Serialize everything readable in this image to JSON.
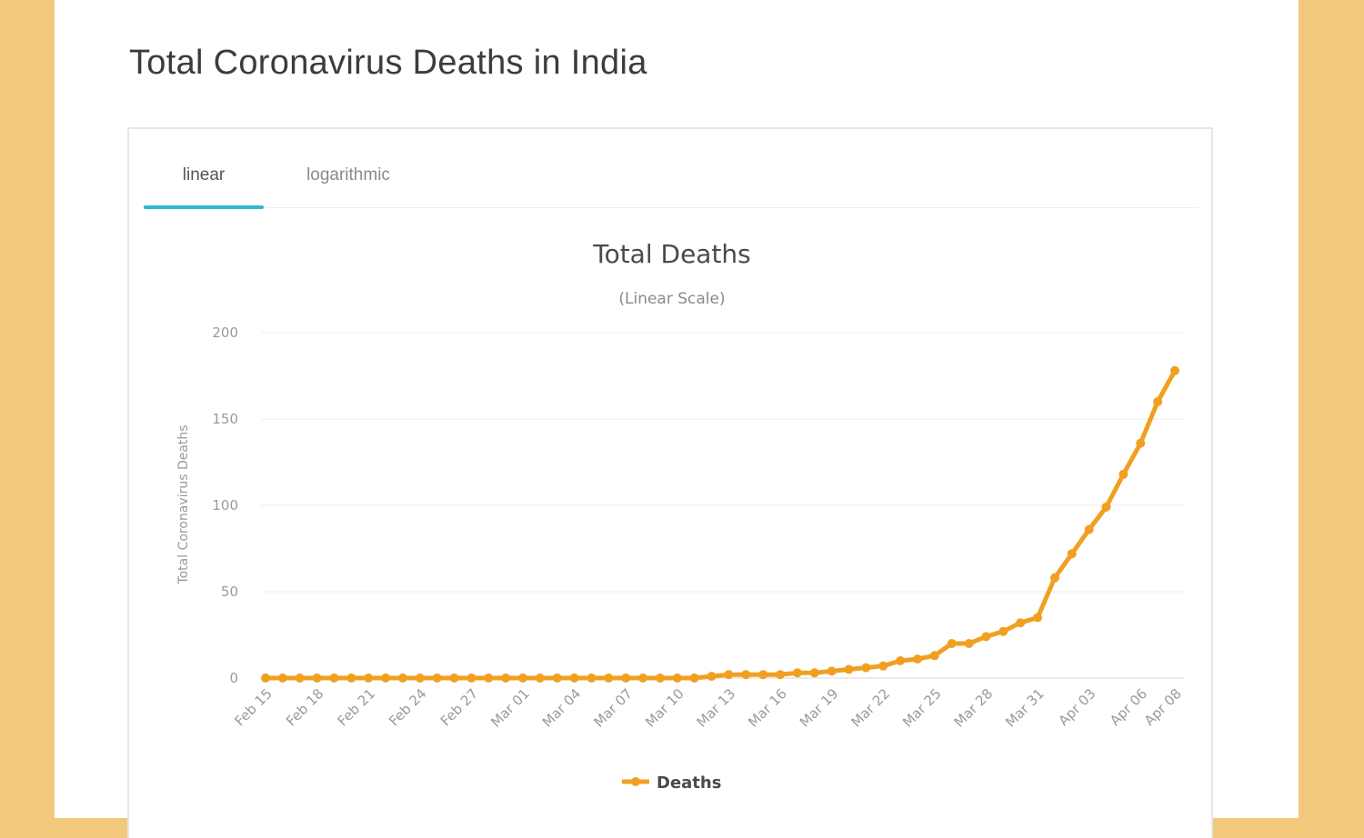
{
  "page": {
    "title": "Total Coronavirus Deaths in India"
  },
  "tabs": [
    {
      "label": "linear",
      "active": true
    },
    {
      "label": "logarithmic",
      "active": false
    }
  ],
  "colors": {
    "series": "#f0a020",
    "tab_underline": "#2fb7d0",
    "background": "#f2c97c"
  },
  "chart_data": {
    "type": "line",
    "title": "Total Deaths",
    "subtitle": "(Linear Scale)",
    "ylabel": "Total Coronavirus Deaths",
    "xlabel": "",
    "ylim": [
      0,
      200
    ],
    "yticks": [
      0,
      50,
      100,
      150,
      200
    ],
    "grid": true,
    "legend_position": "bottom",
    "xtick_labels": [
      "Feb 15",
      "Feb 18",
      "Feb 21",
      "Feb 24",
      "Feb 27",
      "Mar 01",
      "Mar 04",
      "Mar 07",
      "Mar 10",
      "Mar 13",
      "Mar 16",
      "Mar 19",
      "Mar 22",
      "Mar 25",
      "Mar 28",
      "Mar 31",
      "Apr 03",
      "Apr 06",
      "Apr 08"
    ],
    "series": [
      {
        "name": "Deaths",
        "x": [
          "Feb 15",
          "Feb 16",
          "Feb 17",
          "Feb 18",
          "Feb 19",
          "Feb 20",
          "Feb 21",
          "Feb 22",
          "Feb 23",
          "Feb 24",
          "Feb 25",
          "Feb 26",
          "Feb 27",
          "Feb 28",
          "Feb 29",
          "Mar 01",
          "Mar 02",
          "Mar 03",
          "Mar 04",
          "Mar 05",
          "Mar 06",
          "Mar 07",
          "Mar 08",
          "Mar 09",
          "Mar 10",
          "Mar 11",
          "Mar 12",
          "Mar 13",
          "Mar 14",
          "Mar 15",
          "Mar 16",
          "Mar 17",
          "Mar 18",
          "Mar 19",
          "Mar 20",
          "Mar 21",
          "Mar 22",
          "Mar 23",
          "Mar 24",
          "Mar 25",
          "Mar 26",
          "Mar 27",
          "Mar 28",
          "Mar 29",
          "Mar 30",
          "Mar 31",
          "Apr 01",
          "Apr 02",
          "Apr 03",
          "Apr 04",
          "Apr 05",
          "Apr 06",
          "Apr 07",
          "Apr 08"
        ],
        "values": [
          0,
          0,
          0,
          0,
          0,
          0,
          0,
          0,
          0,
          0,
          0,
          0,
          0,
          0,
          0,
          0,
          0,
          0,
          0,
          0,
          0,
          0,
          0,
          0,
          0,
          0,
          1,
          2,
          2,
          2,
          2,
          3,
          3,
          4,
          5,
          6,
          7,
          10,
          11,
          13,
          20,
          20,
          24,
          27,
          32,
          35,
          58,
          72,
          86,
          99,
          118,
          136,
          160,
          178
        ]
      }
    ]
  }
}
